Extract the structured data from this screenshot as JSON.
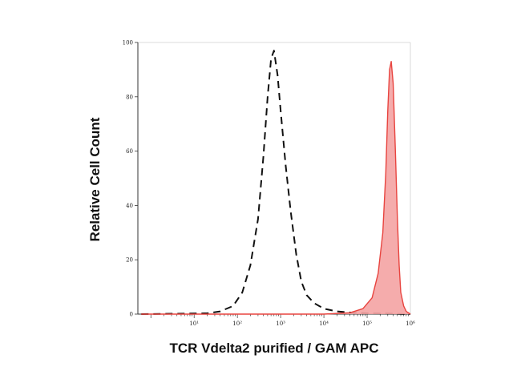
{
  "chart_data": {
    "type": "area",
    "title": "",
    "xlabel": "TCR Vdelta2 purified / GAM APC",
    "ylabel": "Relative Cell Count",
    "xscale": "log",
    "xlim": [
      0.5,
      1000000
    ],
    "ylim": [
      0,
      100
    ],
    "x_ticks": [
      {
        "value": 10,
        "label": "10¹"
      },
      {
        "value": 100,
        "label": "10²"
      },
      {
        "value": 1000,
        "label": "10³"
      },
      {
        "value": 10000,
        "label": "10⁴"
      },
      {
        "value": 100000,
        "label": "10⁵"
      },
      {
        "value": 1000000,
        "label": "10⁶"
      }
    ],
    "y_ticks": [
      0,
      20,
      40,
      60,
      80,
      100
    ],
    "grid": false,
    "legend": "none",
    "series": [
      {
        "style": "dashed-line",
        "color": "#111111",
        "x": [
          0.6,
          20,
          40,
          80,
          130,
          200,
          300,
          400,
          500,
          600,
          700,
          850,
          1000,
          1300,
          1700,
          2300,
          3000,
          4000,
          6000,
          10000,
          20000,
          50000,
          100000,
          300000,
          1000000
        ],
        "y": [
          0,
          0.3,
          1,
          3,
          8,
          18,
          35,
          58,
          80,
          94,
          97,
          88,
          75,
          55,
          38,
          22,
          12,
          7,
          4,
          2,
          1,
          0.5,
          0.3,
          0.2,
          0
        ]
      },
      {
        "style": "filled",
        "color": "#e8443f",
        "fill": "#f4a3a3",
        "x": [
          0.6,
          10000,
          40000,
          80000,
          130000,
          180000,
          230000,
          270000,
          300000,
          330000,
          360000,
          400000,
          450000,
          500000,
          550000,
          600000,
          700000,
          800000,
          1000000
        ],
        "y": [
          0,
          0,
          0.5,
          2,
          6,
          15,
          30,
          52,
          75,
          90,
          93,
          85,
          60,
          35,
          18,
          8,
          3,
          1,
          0
        ]
      }
    ]
  }
}
